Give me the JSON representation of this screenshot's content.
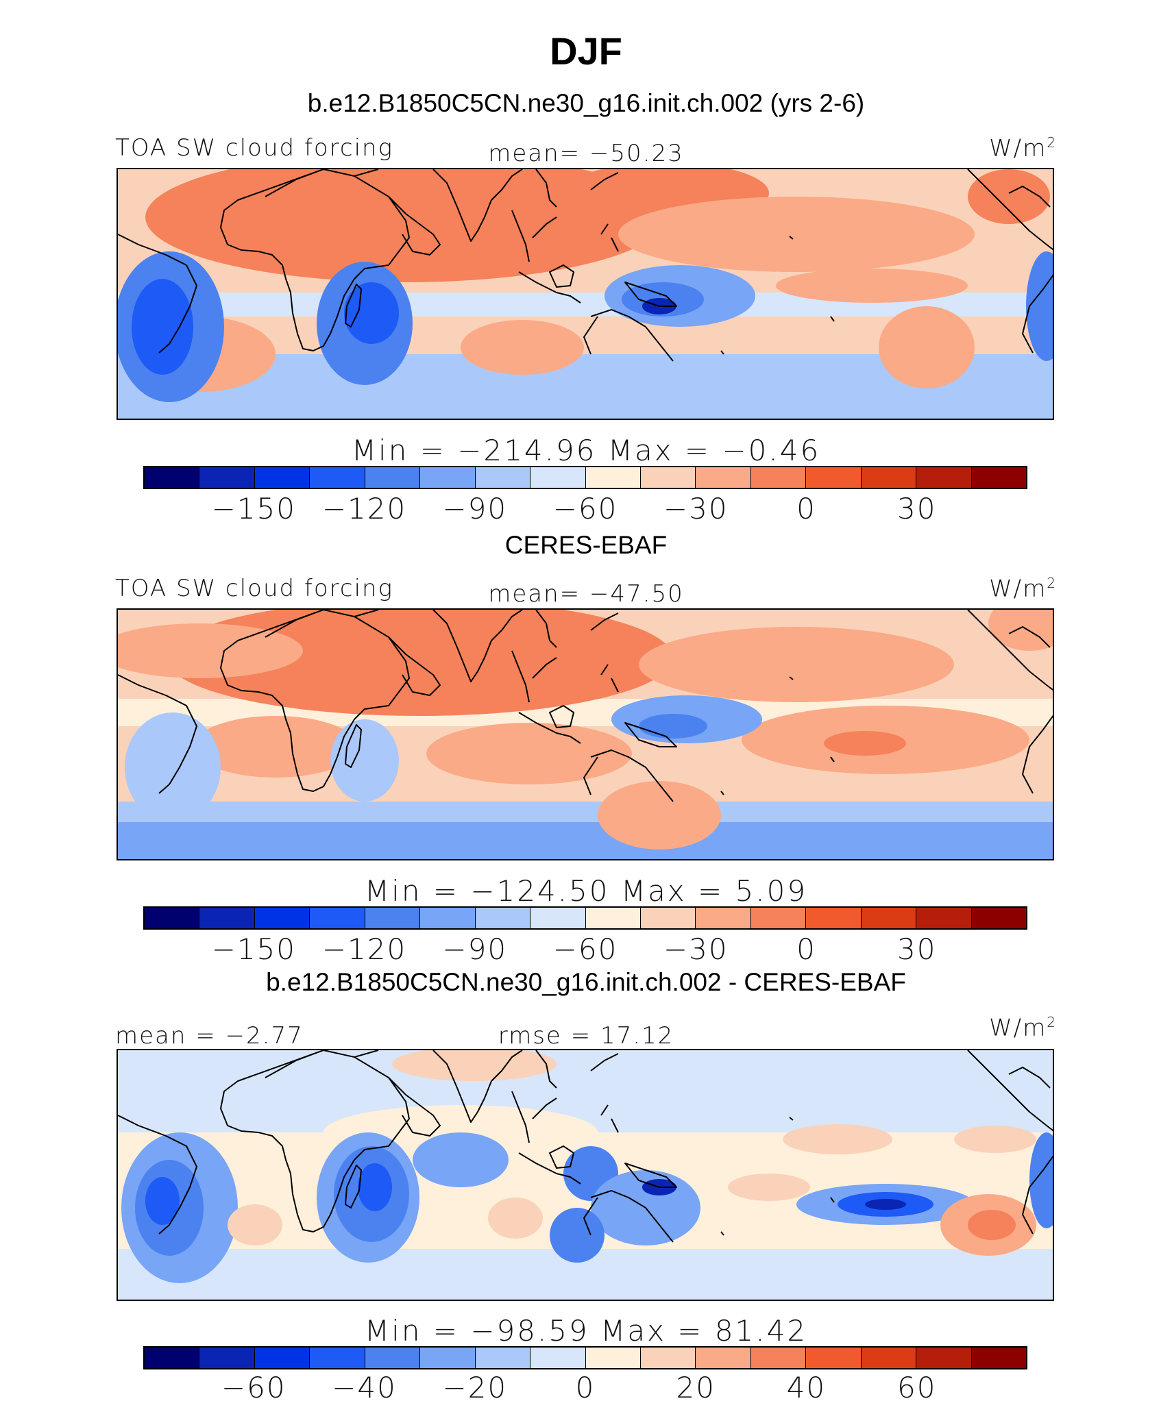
{
  "title": "DJF",
  "colors": [
    "#00006e",
    "#0a24b4",
    "#0033e6",
    "#1e5af5",
    "#4b82f0",
    "#78a5f5",
    "#aac8fa",
    "#d7e6fa",
    "#fff0dc",
    "#fad2b9",
    "#faaa87",
    "#f5825a",
    "#f05a2d",
    "#dc3c14",
    "#b41e0a",
    "#8c0000"
  ],
  "panels": [
    {
      "title": "b.e12.B1850C5CN.ne30_g16.init.ch.002 (yrs 2-6)",
      "left_label": "TOA SW cloud forcing",
      "center_label": "mean= −50.23",
      "units": "W/m",
      "units_sup": "2",
      "minmax": "Min  =  −214.96  Max  =   −0.46",
      "ticks": [
        "−150",
        "−120",
        "−90",
        "−60",
        "−30",
        "0",
        "30"
      ],
      "map_desc": "TOA SW cloud forcing model map"
    },
    {
      "title": "CERES-EBAF",
      "left_label": "TOA SW cloud forcing",
      "center_label": "mean= −47.50",
      "units": "W/m",
      "units_sup": "2",
      "minmax": "Min  =  −124.50  Max  =    5.09",
      "ticks": [
        "−150",
        "−120",
        "−90",
        "−60",
        "−30",
        "0",
        "30"
      ],
      "map_desc": "TOA SW cloud forcing observation map"
    },
    {
      "title": "b.e12.B1850C5CN.ne30_g16.init.ch.002 - CERES-EBAF",
      "left_label": "mean =  −2.77",
      "center_label": "rmse =  17.12",
      "units": "W/m",
      "units_sup": "2",
      "minmax": "Min  =  −98.59  Max  =   81.42",
      "ticks": [
        "−60",
        "−40",
        "−20",
        "0",
        "20",
        "40",
        "60"
      ],
      "map_desc": "Difference map"
    }
  ]
}
